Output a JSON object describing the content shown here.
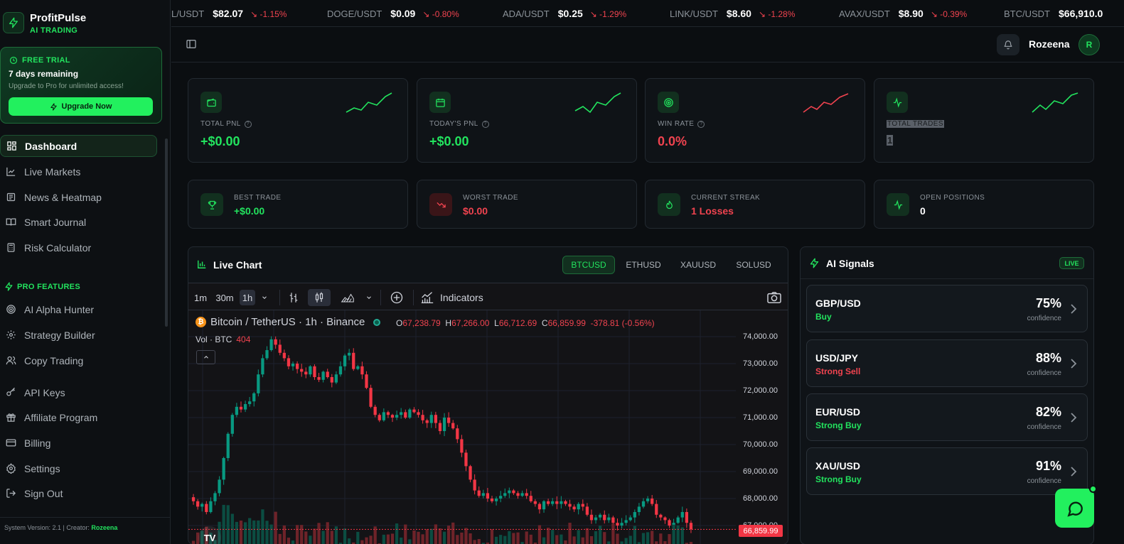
{
  "brand": {
    "name": "ProfitPulse",
    "subtitle": "AI TRADING"
  },
  "trial": {
    "tag": "FREE TRIAL",
    "days": "7 days remaining",
    "desc": "Upgrade to Pro for unlimited access!",
    "button": "Upgrade Now"
  },
  "nav": {
    "main": [
      {
        "label": "Dashboard",
        "icon": "grid-icon",
        "active": true
      },
      {
        "label": "Live Markets",
        "icon": "line-chart-icon"
      },
      {
        "label": "News & Heatmap",
        "icon": "newspaper-icon"
      },
      {
        "label": "Smart Journal",
        "icon": "book-icon"
      },
      {
        "label": "Risk Calculator",
        "icon": "calculator-icon"
      }
    ],
    "pro_heading": "PRO FEATURES",
    "pro": [
      {
        "label": "AI Alpha Hunter",
        "icon": "target-icon"
      },
      {
        "label": "Strategy Builder",
        "icon": "gear-icon"
      },
      {
        "label": "Copy Trading",
        "icon": "users-icon"
      }
    ],
    "bottom": [
      {
        "label": "API Keys",
        "icon": "key-icon"
      },
      {
        "label": "Affiliate Program",
        "icon": "gift-icon"
      },
      {
        "label": "Billing",
        "icon": "credit-card-icon"
      },
      {
        "label": "Settings",
        "icon": "settings-icon"
      },
      {
        "label": "Sign Out",
        "icon": "sign-out-icon"
      }
    ]
  },
  "footer": {
    "prefix": "System Version: 2.1 | Creator:",
    "creator": "Rozeena"
  },
  "ticker": [
    {
      "symbol": "L/USDT",
      "price": "$82.07",
      "change": "-1.15%"
    },
    {
      "symbol": "DOGE/USDT",
      "price": "$0.09",
      "change": "-0.80%"
    },
    {
      "symbol": "ADA/USDT",
      "price": "$0.25",
      "change": "-1.29%"
    },
    {
      "symbol": "LINK/USDT",
      "price": "$8.60",
      "change": "-1.28%"
    },
    {
      "symbol": "AVAX/USDT",
      "price": "$8.90",
      "change": "-0.39%"
    },
    {
      "symbol": "BTC/USDT",
      "price": "$66,910.0",
      "change": ""
    }
  ],
  "header": {
    "user": "Rozeena",
    "avatar": "R"
  },
  "stats": [
    {
      "label": "TOTAL PNL",
      "value": "+$0.00",
      "icon": "wallet-icon",
      "trend": "up"
    },
    {
      "label": "TODAY'S PNL",
      "value": "+$0.00",
      "icon": "calendar-icon",
      "trend": "up"
    },
    {
      "label": "WIN RATE",
      "value": "0.0%",
      "icon": "target-icon",
      "trend": "down"
    },
    {
      "label": "TOTAL TRADES",
      "value": "1",
      "icon": "activity-icon",
      "trend": "up"
    }
  ],
  "small_stats": [
    {
      "label": "BEST TRADE",
      "value": "+$0.00",
      "icon": "trophy-icon"
    },
    {
      "label": "WORST TRADE",
      "value": "$0.00",
      "icon": "trending-down-icon"
    },
    {
      "label": "CURRENT STREAK",
      "value": "1 Losses",
      "icon": "flame-icon"
    },
    {
      "label": "OPEN POSITIONS",
      "value": "0",
      "icon": "activity-icon"
    }
  ],
  "live_chart": {
    "title": "Live Chart",
    "pairs": [
      "BTCUSD",
      "ETHUSD",
      "XAUUSD",
      "SOLUSD"
    ],
    "active_pair": "BTCUSD",
    "timeframes": [
      "1m",
      "30m",
      "1h"
    ],
    "active_timeframe": "1h",
    "indicators_label": "Indicators",
    "symbol_title": "Bitcoin / TetherUS · 1h · Binance",
    "ohlc": {
      "o": "67,238.79",
      "h": "67,266.00",
      "l": "66,712.69",
      "c": "66,859.99",
      "change": "-378.81 (-0.56%)"
    },
    "volume_label": "Vol · BTC",
    "volume_value": "404",
    "last_price": "66,859.99",
    "price_ticks": [
      "74,000.00",
      "73,000.00",
      "72,000.00",
      "71,000.00",
      "70,000.00",
      "69,000.00",
      "68,000.00",
      "67,000.00"
    ]
  },
  "chart_data": {
    "type": "candlestick",
    "title": "Bitcoin / TetherUS · 1h · Binance",
    "ylim": [
      66700,
      74300
    ],
    "close_series": [
      67900,
      67700,
      67800,
      67500,
      67900,
      68200,
      68700,
      69500,
      70400,
      71100,
      71400,
      71300,
      71500,
      71600,
      71900,
      72600,
      73200,
      73500,
      73900,
      73700,
      73400,
      73200,
      72900,
      73000,
      72800,
      72700,
      72600,
      72900,
      72500,
      72400,
      72700,
      72500,
      72300,
      72600,
      72900,
      73300,
      73400,
      72800,
      72900,
      72600,
      72100,
      71400,
      71100,
      70900,
      71200,
      71100,
      71000,
      71100,
      71200,
      71000,
      71300,
      71200,
      71100,
      70900,
      70800,
      71100,
      70800,
      70500,
      71000,
      70800,
      70600,
      70200,
      69700,
      69200,
      68700,
      68300,
      68100,
      68200,
      68000,
      67900,
      68000,
      68100,
      68200,
      68300,
      68200,
      68100,
      68200,
      68100,
      67900,
      67800,
      67600,
      67900,
      67800,
      67900,
      67800,
      67900,
      67800,
      67700,
      67600,
      67800,
      67700,
      67400,
      67200,
      67300,
      67400,
      67200,
      67300,
      67100,
      67000,
      67100,
      67200,
      67300,
      67500,
      67700,
      67900,
      68000,
      67800,
      67400,
      67300,
      67200,
      67000,
      67100,
      67300,
      67500,
      67100,
      66860
    ]
  },
  "signals": {
    "title": "AI Signals",
    "badge": "LIVE",
    "items": [
      {
        "pair": "GBP/USD",
        "direction": "Buy",
        "confidence": "75%",
        "conf_label": "confidence",
        "color": "#22e35e"
      },
      {
        "pair": "USD/JPY",
        "direction": "Strong Sell",
        "confidence": "88%",
        "conf_label": "confidence",
        "color": "#f0434f"
      },
      {
        "pair": "EUR/USD",
        "direction": "Strong Buy",
        "confidence": "82%",
        "conf_label": "confidence",
        "color": "#22e35e"
      },
      {
        "pair": "XAU/USD",
        "direction": "Strong Buy",
        "confidence": "91%",
        "conf_label": "confidence",
        "color": "#22e35e"
      }
    ]
  },
  "colors": {
    "accent": "#22e35e",
    "negative": "#f0434f",
    "bg": "#0b0e11"
  }
}
